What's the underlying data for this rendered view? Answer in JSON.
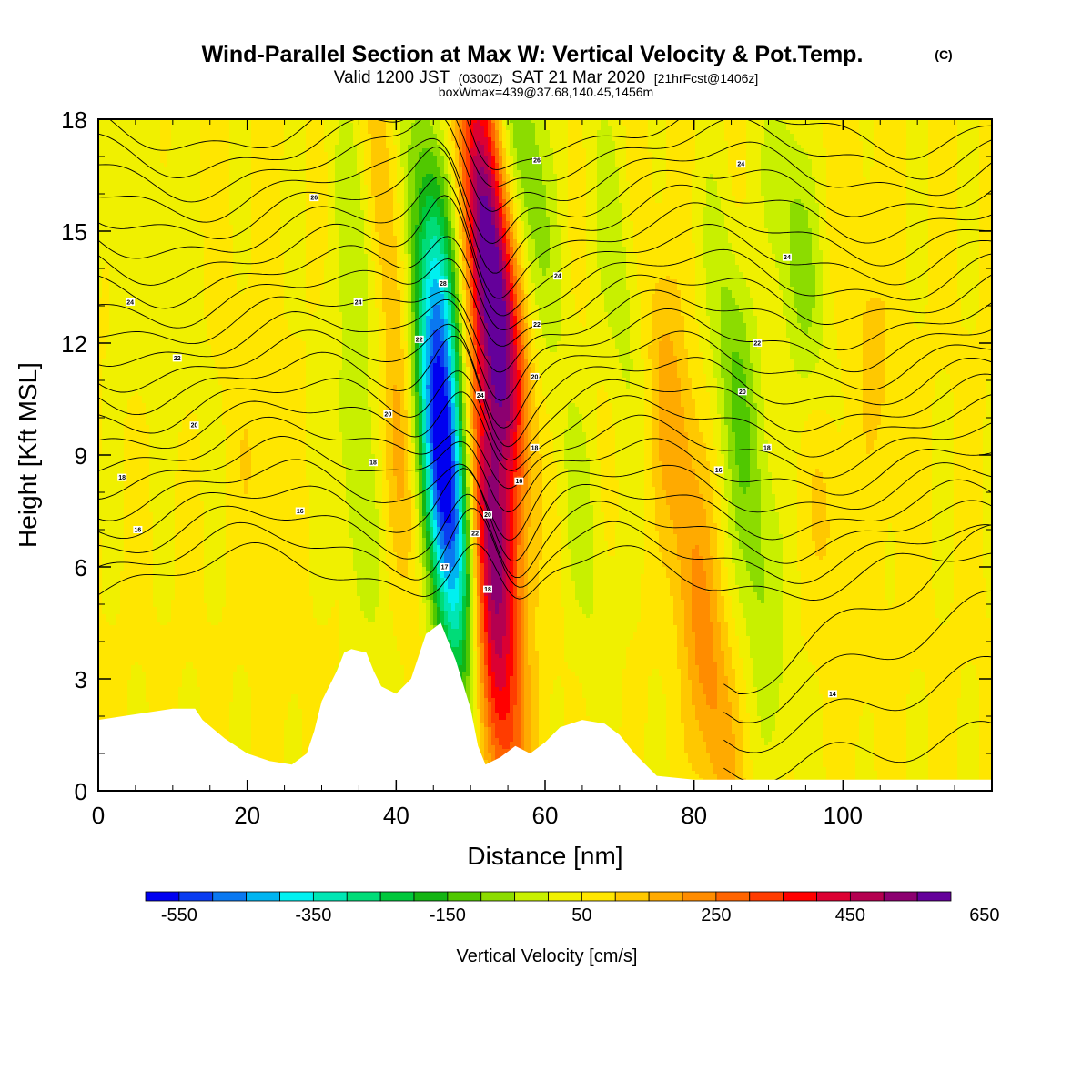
{
  "chart_data": {
    "type": "heatmap",
    "title": "Wind-Parallel Section at Max W: Vertical Velocity & Pot.Temp.",
    "title_mark": "(C)",
    "subtitle": {
      "valid": "Valid 1200 JST",
      "utc": "(0300Z)",
      "date": "SAT 21 Mar 2020",
      "fcst": "[21hrFcst@1406z]"
    },
    "subtitle2": "boxWmax=439@37.68,140.45,1456m",
    "xlabel": "Distance [nm]",
    "ylabel": "Height [Kft MSL]",
    "xlim": [
      0,
      120
    ],
    "ylim": [
      0,
      18
    ],
    "x_ticks": [
      "0",
      "20",
      "40",
      "60",
      "80",
      "100"
    ],
    "y_ticks": [
      "0",
      "3",
      "6",
      "9",
      "12",
      "15",
      "18"
    ],
    "colorbar": {
      "label": "Vertical Velocity [cm/s]",
      "tick_labels": [
        "-550",
        "-350",
        "-150",
        "50",
        "250",
        "450",
        "650"
      ],
      "colors": [
        "#0000f0",
        "#0a3cf0",
        "#0a78f0",
        "#00b4f0",
        "#00f0f0",
        "#00e6b4",
        "#00dc78",
        "#00c83c",
        "#14b414",
        "#50c800",
        "#8cdc00",
        "#c8f000",
        "#f0f000",
        "#ffe600",
        "#ffc800",
        "#ffaa00",
        "#ff8c00",
        "#ff6400",
        "#ff3c00",
        "#ff0000",
        "#dc0032",
        "#b40050",
        "#8c0070",
        "#64009a"
      ]
    },
    "w_anomalies": [
      {
        "x": 46.5,
        "z": 9.0,
        "w": -560
      },
      {
        "x": 46.0,
        "z": 13.5,
        "w": -330
      },
      {
        "x": 47.0,
        "z": 5.5,
        "w": -250
      },
      {
        "x": 53.5,
        "z": 12.5,
        "w": 480
      },
      {
        "x": 52.5,
        "z": 7.5,
        "w": 400
      },
      {
        "x": 53.0,
        "z": 3.0,
        "w": 290
      },
      {
        "x": 52.0,
        "z": 17.0,
        "w": 250
      },
      {
        "x": 57.0,
        "z": 17.0,
        "w": -180
      },
      {
        "x": 36.0,
        "z": 14.0,
        "w": -130
      },
      {
        "x": 34.5,
        "z": 8.0,
        "w": -90
      },
      {
        "x": 40.5,
        "z": 9.5,
        "w": 130
      },
      {
        "x": 39.5,
        "z": 14.5,
        "w": 120
      },
      {
        "x": 65.0,
        "z": 7.0,
        "w": -70
      },
      {
        "x": 70.0,
        "z": 14.0,
        "w": -90
      },
      {
        "x": 77.0,
        "z": 10.0,
        "w": 130
      },
      {
        "x": 82.0,
        "z": 3.0,
        "w": 160
      },
      {
        "x": 86.0,
        "z": 11.0,
        "w": -150
      },
      {
        "x": 89.0,
        "z": 5.0,
        "w": -90
      },
      {
        "x": 94.0,
        "z": 14.0,
        "w": -150
      },
      {
        "x": 98.0,
        "z": 8.0,
        "w": 70
      },
      {
        "x": 104.0,
        "z": 12.0,
        "w": 60
      },
      {
        "x": 10.0,
        "z": 14.0,
        "w": -40
      },
      {
        "x": 22.0,
        "z": 8.0,
        "w": 40
      },
      {
        "x": 3.0,
        "z": 15.0,
        "w": -40
      }
    ],
    "terrain": {
      "x": [
        0,
        10,
        13,
        14,
        17,
        20,
        23,
        26,
        28,
        29,
        30,
        32,
        33,
        34,
        36,
        37,
        38,
        40,
        42,
        44,
        46,
        48,
        50,
        51,
        52,
        54,
        56,
        58,
        60,
        62,
        65,
        68,
        70,
        72,
        75,
        80,
        85,
        90,
        95,
        100,
        110,
        120
      ],
      "z": [
        1.9,
        2.2,
        2.2,
        1.9,
        1.4,
        1.0,
        0.8,
        0.7,
        1.0,
        1.6,
        2.4,
        3.2,
        3.7,
        3.8,
        3.7,
        3.2,
        2.8,
        2.6,
        3.0,
        4.2,
        4.5,
        3.5,
        2.2,
        1.2,
        0.7,
        0.9,
        1.2,
        1.0,
        1.3,
        1.7,
        1.9,
        1.8,
        1.5,
        1.0,
        0.4,
        0.3,
        0.3,
        0.3,
        0.3,
        0.3,
        0.3,
        0.3
      ]
    },
    "isotherm_labels": [
      "24",
      "22",
      "20",
      "18",
      "16"
    ],
    "contour_annotations": [
      {
        "text": "24",
        "x": 4.3,
        "z": 13.1
      },
      {
        "text": "22",
        "x": 10.6,
        "z": 11.6
      },
      {
        "text": "20",
        "x": 12.9,
        "z": 9.8
      },
      {
        "text": "18",
        "x": 3.2,
        "z": 8.4
      },
      {
        "text": "16",
        "x": 5.3,
        "z": 7.0
      },
      {
        "text": "16",
        "x": 27.1,
        "z": 7.5
      },
      {
        "text": "18",
        "x": 36.9,
        "z": 8.8
      },
      {
        "text": "20",
        "x": 38.9,
        "z": 10.1
      },
      {
        "text": "22",
        "x": 43.1,
        "z": 12.1
      },
      {
        "text": "24",
        "x": 34.9,
        "z": 13.1
      },
      {
        "text": "26",
        "x": 29.0,
        "z": 15.9
      },
      {
        "text": "28",
        "x": 46.3,
        "z": 13.6
      },
      {
        "text": "24",
        "x": 51.3,
        "z": 10.6
      },
      {
        "text": "22",
        "x": 50.6,
        "z": 6.9
      },
      {
        "text": "20",
        "x": 52.3,
        "z": 7.4
      },
      {
        "text": "17",
        "x": 46.5,
        "z": 6.0
      },
      {
        "text": "18",
        "x": 52.3,
        "z": 5.4
      },
      {
        "text": "16",
        "x": 56.5,
        "z": 8.3
      },
      {
        "text": "18",
        "x": 58.6,
        "z": 9.2
      },
      {
        "text": "20",
        "x": 58.6,
        "z": 11.1
      },
      {
        "text": "22",
        "x": 58.9,
        "z": 12.5
      },
      {
        "text": "24",
        "x": 61.7,
        "z": 13.8
      },
      {
        "text": "26",
        "x": 58.9,
        "z": 16.9
      },
      {
        "text": "24",
        "x": 86.3,
        "z": 16.8
      },
      {
        "text": "24",
        "x": 92.5,
        "z": 14.3
      },
      {
        "text": "22",
        "x": 88.5,
        "z": 12.0
      },
      {
        "text": "20",
        "x": 86.5,
        "z": 10.7
      },
      {
        "text": "18",
        "x": 89.8,
        "z": 9.2
      },
      {
        "text": "16",
        "x": 83.3,
        "z": 8.6
      },
      {
        "text": "14",
        "x": 98.6,
        "z": 2.6
      }
    ]
  }
}
